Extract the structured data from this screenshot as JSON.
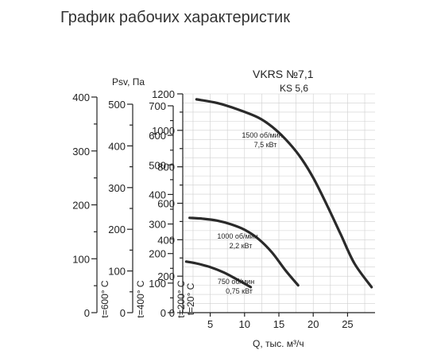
{
  "title": "График рабочих характеристик",
  "chart_data": {
    "type": "line",
    "model": "VKRS №7,1",
    "model_sub": "KS 5,6",
    "xlabel": "Q, тыс. м³/ч",
    "ylabel": "Psv, Па",
    "xlim": [
      1,
      29
    ],
    "ylim": [
      0,
      1200
    ],
    "x_ticks": [
      5,
      10,
      15,
      20,
      25
    ],
    "y_ticks": [
      0,
      200,
      400,
      600,
      800,
      1000,
      1200
    ],
    "grid": true,
    "temperature_axes": [
      {
        "label": "t=600° C",
        "max": 400,
        "step": 100,
        "minor_step": 50,
        "ticks": [
          0,
          100,
          200,
          300,
          400
        ]
      },
      {
        "label": "t=400° C",
        "max": 500,
        "step": 100,
        "minor_step": 50,
        "ticks": [
          0,
          100,
          200,
          300,
          400,
          500
        ]
      },
      {
        "label": "t=200° C",
        "max": 700,
        "step": 100,
        "minor_step": 50,
        "ticks": [
          0,
          100,
          200,
          300,
          400,
          500,
          600,
          700
        ]
      },
      {
        "label": "t=20° C",
        "max": 1200,
        "step": 200,
        "minor_step": 100,
        "ticks": []
      }
    ],
    "series": [
      {
        "name": "1500 об/мин",
        "power": "7,5 кВт",
        "x": [
          3,
          6,
          9,
          12,
          14,
          16,
          18,
          20,
          22,
          24,
          26,
          28.5
        ],
        "y": [
          1170,
          1150,
          1115,
          1070,
          1020,
          950,
          860,
          740,
          590,
          430,
          270,
          140
        ]
      },
      {
        "name": "1000 об/мин",
        "power": "2,2 кВт",
        "x": [
          2,
          4,
          6,
          8,
          10,
          12,
          14,
          16,
          17.8
        ],
        "y": [
          520,
          515,
          505,
          485,
          455,
          405,
          330,
          230,
          150
        ]
      },
      {
        "name": "750 об/мин",
        "power": "0,75 кВт",
        "x": [
          1.5,
          3,
          5,
          7,
          9,
          10.9
        ],
        "y": [
          280,
          270,
          250,
          220,
          180,
          140
        ]
      }
    ]
  }
}
